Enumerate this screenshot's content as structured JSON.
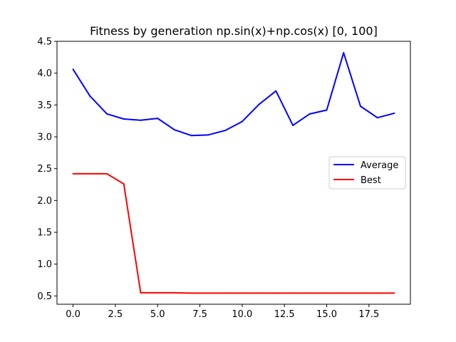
{
  "chart_data": {
    "type": "line",
    "title": "Fitness by generation np.sin(x)+np.cos(x) [0, 100]",
    "xlabel": "",
    "ylabel": "",
    "xlim": [
      -0.95,
      19.95
    ],
    "ylim": [
      0.37,
      4.5
    ],
    "xticks": [
      0,
      2.5,
      5,
      7.5,
      10,
      12.5,
      15,
      17.5
    ],
    "xtick_labels": [
      "0.0",
      "2.5",
      "5.0",
      "7.5",
      "10.0",
      "12.5",
      "15.0",
      "17.5"
    ],
    "yticks": [
      0.5,
      1.0,
      1.5,
      2.0,
      2.5,
      3.0,
      3.5,
      4.0,
      4.5
    ],
    "ytick_labels": [
      "0.5",
      "1.0",
      "1.5",
      "2.0",
      "2.5",
      "3.0",
      "3.5",
      "4.0",
      "4.5"
    ],
    "grid": false,
    "legend_position": "center-right",
    "x": [
      0,
      1,
      2,
      3,
      4,
      5,
      6,
      7,
      8,
      9,
      10,
      11,
      12,
      13,
      14,
      15,
      16,
      17,
      18,
      19
    ],
    "series": [
      {
        "name": "Average",
        "color": "#0000ff",
        "values": [
          4.06,
          3.64,
          3.36,
          3.28,
          3.26,
          3.29,
          3.11,
          3.02,
          3.03,
          3.1,
          3.24,
          3.51,
          3.72,
          3.18,
          3.36,
          3.42,
          4.32,
          3.48,
          3.3,
          3.37
        ]
      },
      {
        "name": "Best",
        "color": "#ff0000",
        "values": [
          2.42,
          2.42,
          2.42,
          2.26,
          0.55,
          0.55,
          0.55,
          0.545,
          0.545,
          0.545,
          0.545,
          0.545,
          0.545,
          0.545,
          0.545,
          0.545,
          0.545,
          0.545,
          0.545,
          0.545
        ]
      }
    ]
  }
}
